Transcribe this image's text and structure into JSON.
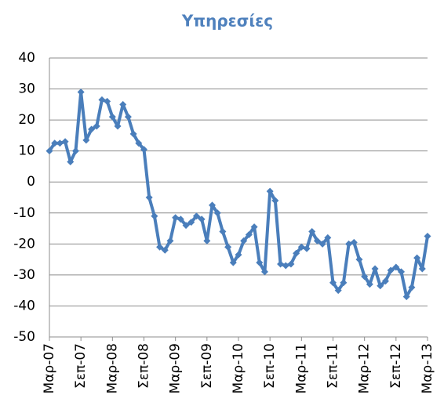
{
  "chart_data": {
    "type": "line",
    "title": "Υπηρεσίες",
    "categories": [
      "Μαρ-07",
      null,
      null,
      null,
      null,
      null,
      "Σεπ-07",
      null,
      null,
      null,
      null,
      null,
      "Μαρ-08",
      null,
      null,
      null,
      null,
      null,
      "Σεπ-08",
      null,
      null,
      null,
      null,
      null,
      "Μαρ-09",
      null,
      null,
      null,
      null,
      null,
      "Σεπ-09",
      null,
      null,
      null,
      null,
      null,
      "Μαρ-10",
      null,
      null,
      null,
      null,
      null,
      "Σεπ-10",
      null,
      null,
      null,
      null,
      null,
      "Μαρ-11",
      null,
      null,
      null,
      null,
      null,
      "Σεπ-11",
      null,
      null,
      null,
      null,
      null,
      "Μαρ-12",
      null,
      null,
      null,
      null,
      null,
      "Σεπ-12",
      null,
      null,
      null,
      null,
      null,
      "Μαρ-13"
    ],
    "series": [
      {
        "color": "#4a7ebb",
        "values": [
          10,
          12.5,
          12.5,
          13,
          6.5,
          10,
          29,
          13.5,
          17,
          18,
          26.5,
          26,
          21,
          18,
          25,
          21,
          15.5,
          12.5,
          10.5,
          -5,
          -11,
          -21,
          -22,
          -19,
          -11.5,
          -12,
          -14,
          -13,
          -11,
          -12,
          -19,
          -7.5,
          -10,
          -16,
          -21,
          -26,
          -23.5,
          -19,
          -17,
          -14.5,
          -26,
          -29,
          -3,
          -6,
          -26.5,
          -27,
          -26.5,
          -23,
          -21,
          -21.5,
          -16,
          -19,
          -20,
          -18,
          -32.5,
          -35,
          -32.5,
          -20,
          -19.5,
          -25,
          -30.5,
          -33,
          -28,
          -33.5,
          -32,
          -28.5,
          -27.5,
          -29,
          -37,
          -34,
          -24.5,
          -28,
          -17.5
        ]
      }
    ],
    "ylim": [
      -50,
      40
    ],
    "yticks": [
      -50,
      -40,
      -30,
      -20,
      -10,
      0,
      10,
      20,
      30,
      40
    ],
    "grid": true
  }
}
